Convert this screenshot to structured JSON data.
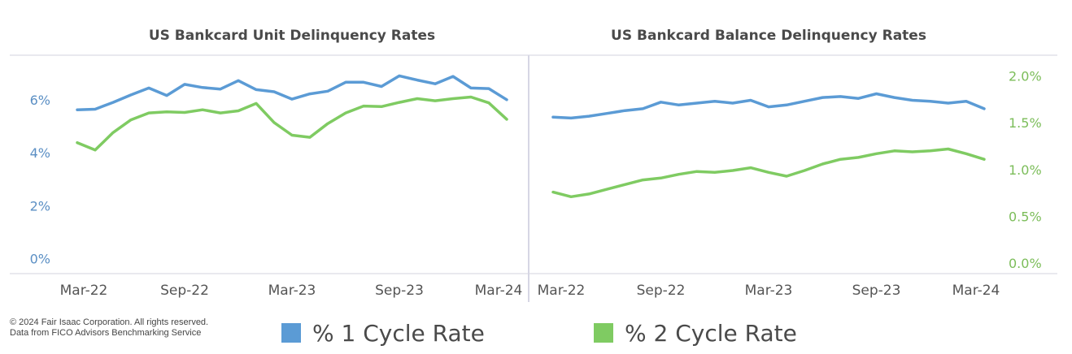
{
  "colors": {
    "series1": "#5b9bd5",
    "series2": "#7fcb62",
    "left_axis": "#5b8fc4",
    "right_axis": "#7cbd5a",
    "frame": "#e2e2ea",
    "grid": "#f1f1f1"
  },
  "footer": {
    "copyright": "© 2024 Fair Isaac Corporation. All rights reserved.",
    "source": "Data from FICO Advisors Benchmarking Service"
  },
  "legend": {
    "series1_label": "% 1 Cycle Rate",
    "series2_label": "% 2 Cycle Rate",
    "placement": "bottom"
  },
  "chart_data": [
    {
      "type": "line",
      "title": "US Bankcard Unit Delinquency Rates",
      "xlabel": "",
      "ylabel": "",
      "x_tick_labels": [
        "Mar-22",
        "Sep-22",
        "Mar-23",
        "Sep-23",
        "Mar-24"
      ],
      "x_tick_positions": [
        0,
        6,
        12,
        18,
        24
      ],
      "x": [
        "Mar-22",
        "Apr-22",
        "May-22",
        "Jun-22",
        "Jul-22",
        "Aug-22",
        "Sep-22",
        "Oct-22",
        "Nov-22",
        "Dec-22",
        "Jan-23",
        "Feb-23",
        "Mar-23",
        "Apr-23",
        "May-23",
        "Jun-23",
        "Jul-23",
        "Aug-23",
        "Sep-23",
        "Oct-23",
        "Nov-23",
        "Dec-23",
        "Jan-24",
        "Feb-24",
        "Mar-24"
      ],
      "y_axis": {
        "side": "left",
        "ticks": [
          0,
          2,
          4,
          6
        ],
        "tick_labels": [
          "0%",
          "2%",
          "4%",
          "6%"
        ],
        "ylim": [
          -0.35,
          7.25
        ]
      },
      "grid": false,
      "series": [
        {
          "name": "% 1 Cycle Rate",
          "values": [
            5.62,
            5.64,
            5.9,
            6.18,
            6.44,
            6.16,
            6.58,
            6.46,
            6.4,
            6.72,
            6.38,
            6.3,
            6.02,
            6.22,
            6.32,
            6.66,
            6.66,
            6.5,
            6.9,
            6.74,
            6.6,
            6.88,
            6.44,
            6.42,
            6.0
          ]
        },
        {
          "name": "% 2 Cycle Rate",
          "values": [
            4.38,
            4.1,
            4.76,
            5.24,
            5.5,
            5.54,
            5.52,
            5.62,
            5.5,
            5.58,
            5.86,
            5.14,
            4.66,
            4.58,
            5.1,
            5.5,
            5.76,
            5.74,
            5.9,
            6.04,
            5.96,
            6.04,
            6.1,
            5.88,
            5.26
          ]
        }
      ]
    },
    {
      "type": "line",
      "title": "US Bankcard Balance Delinquency Rates",
      "xlabel": "",
      "ylabel": "",
      "x_tick_labels": [
        "Mar-22",
        "Sep-22",
        "Mar-23",
        "Sep-23",
        "Mar-24"
      ],
      "x_tick_positions": [
        0,
        6,
        12,
        18,
        24
      ],
      "x": [
        "Mar-22",
        "Apr-22",
        "May-22",
        "Jun-22",
        "Jul-22",
        "Aug-22",
        "Sep-22",
        "Oct-22",
        "Nov-22",
        "Dec-22",
        "Jan-23",
        "Feb-23",
        "Mar-23",
        "Apr-23",
        "May-23",
        "Jun-23",
        "Jul-23",
        "Aug-23",
        "Sep-23",
        "Oct-23",
        "Nov-23",
        "Dec-23",
        "Jan-24",
        "Feb-24",
        "Mar-24"
      ],
      "y_axis": {
        "side": "right",
        "ticks": [
          0.0,
          0.5,
          1.0,
          1.5,
          2.0
        ],
        "tick_labels": [
          "0.0%",
          "0.5%",
          "1.0%",
          "1.5%",
          "2.0%"
        ],
        "ylim": [
          -0.05,
          2.1
        ]
      },
      "grid": false,
      "series": [
        {
          "name": "% 1 Cycle Rate",
          "values": [
            1.56,
            1.55,
            1.57,
            1.6,
            1.63,
            1.65,
            1.72,
            1.69,
            1.71,
            1.73,
            1.71,
            1.74,
            1.67,
            1.69,
            1.73,
            1.77,
            1.78,
            1.76,
            1.81,
            1.77,
            1.74,
            1.73,
            1.71,
            1.73,
            1.65
          ]
        },
        {
          "name": "% 2 Cycle Rate",
          "values": [
            0.76,
            0.71,
            0.74,
            0.79,
            0.84,
            0.89,
            0.91,
            0.95,
            0.98,
            0.97,
            0.99,
            1.02,
            0.97,
            0.93,
            0.99,
            1.06,
            1.11,
            1.13,
            1.17,
            1.2,
            1.19,
            1.2,
            1.22,
            1.17,
            1.11
          ]
        }
      ]
    }
  ]
}
